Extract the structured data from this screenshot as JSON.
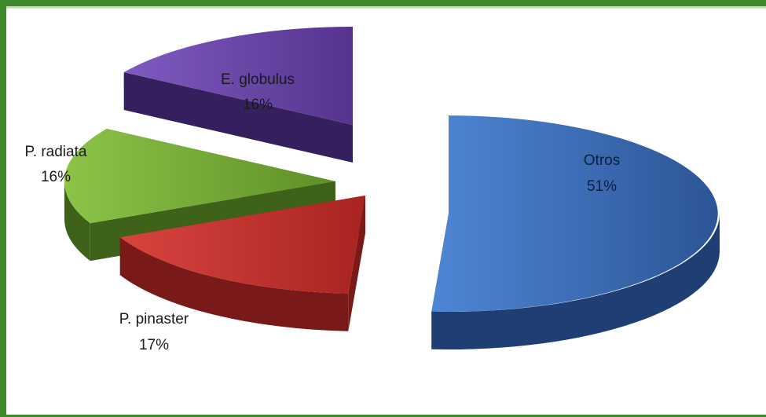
{
  "chart_data": {
    "type": "pie",
    "variant": "exploded-3d",
    "title": "",
    "slices": [
      {
        "label": "Otros",
        "value": 51,
        "display": "51%",
        "color": "#3b6fbd",
        "side_color": "#1f3f74"
      },
      {
        "label": "P. pinaster",
        "value": 17,
        "display": "17%",
        "color": "#c8302c",
        "side_color": "#7a1a18"
      },
      {
        "label": "P. radiata",
        "value": 16,
        "display": "16%",
        "color": "#7cb03a",
        "side_color": "#3f621b"
      },
      {
        "label": "E. globulus",
        "value": 16,
        "display": "16%",
        "color": "#6a45a8",
        "side_color": "#351f5c"
      }
    ]
  }
}
